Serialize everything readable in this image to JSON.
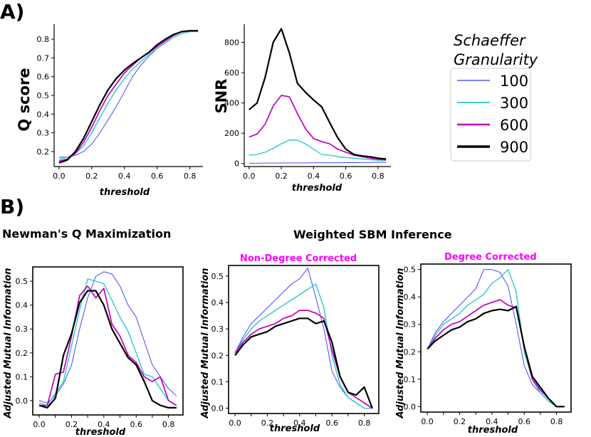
{
  "panel_labels": {
    "a": "A)",
    "b": "B)"
  },
  "headings": {
    "newman": "Newman's Q Maximization",
    "sbm": "Weighted SBM Inference",
    "non_degree": "Non-Degree Corrected",
    "degree": "Degree Corrected"
  },
  "colors": {
    "accent_magenta": "#ff00ff",
    "series": {
      "100": "#3333ff",
      "300": "#22c4c4",
      "600": "#c000c0",
      "900": "#000000"
    }
  },
  "legend": {
    "title_line1": "Schaeffer",
    "title_line2": "Granularity",
    "entries": [
      {
        "label": "100",
        "key": "100"
      },
      {
        "label": "300",
        "key": "300"
      },
      {
        "label": "600",
        "key": "600"
      },
      {
        "label": "900",
        "key": "900"
      }
    ]
  },
  "chart_data": [
    {
      "id": "q_score",
      "type": "line",
      "title": "",
      "xlabel": "threshold",
      "ylabel": "Q score",
      "xlim": [
        -0.03,
        0.88
      ],
      "ylim": [
        0.12,
        0.88
      ],
      "xticks": [
        0.0,
        0.2,
        0.4,
        0.6,
        0.8
      ],
      "xtick_labels": [
        "0.0",
        "0.2",
        "0.4",
        "0.6",
        "0.8"
      ],
      "yticks": [
        0.2,
        0.3,
        0.4,
        0.5,
        0.6,
        0.7,
        0.8
      ],
      "ytick_labels": [
        "0.2",
        "0.3",
        "0.4",
        "0.5",
        "0.6",
        "0.7",
        "0.8"
      ],
      "x": [
        0.0,
        0.05,
        0.1,
        0.15,
        0.2,
        0.25,
        0.3,
        0.35,
        0.4,
        0.45,
        0.5,
        0.55,
        0.6,
        0.65,
        0.7,
        0.75,
        0.8,
        0.85
      ],
      "series": [
        {
          "name": "100",
          "values": [
            0.17,
            0.17,
            0.18,
            0.2,
            0.24,
            0.3,
            0.37,
            0.44,
            0.52,
            0.6,
            0.66,
            0.71,
            0.75,
            0.78,
            0.81,
            0.83,
            0.84,
            0.84
          ]
        },
        {
          "name": "300",
          "values": [
            0.16,
            0.17,
            0.19,
            0.23,
            0.3,
            0.38,
            0.46,
            0.53,
            0.59,
            0.64,
            0.68,
            0.72,
            0.75,
            0.78,
            0.81,
            0.83,
            0.84,
            0.84
          ]
        },
        {
          "name": "600",
          "values": [
            0.15,
            0.16,
            0.19,
            0.25,
            0.33,
            0.42,
            0.5,
            0.56,
            0.62,
            0.66,
            0.7,
            0.73,
            0.76,
            0.79,
            0.82,
            0.84,
            0.845,
            0.845
          ]
        },
        {
          "name": "900",
          "values": [
            0.14,
            0.155,
            0.2,
            0.27,
            0.36,
            0.45,
            0.53,
            0.59,
            0.635,
            0.67,
            0.7,
            0.73,
            0.77,
            0.8,
            0.825,
            0.84,
            0.845,
            0.845
          ]
        }
      ]
    },
    {
      "id": "snr",
      "type": "line",
      "title": "",
      "xlabel": "threshold",
      "ylabel": "SNR",
      "xlim": [
        -0.03,
        0.88
      ],
      "ylim": [
        -20,
        920
      ],
      "xticks": [
        0.0,
        0.2,
        0.4,
        0.6,
        0.8
      ],
      "xtick_labels": [
        "0.0",
        "0.2",
        "0.4",
        "0.6",
        "0.8"
      ],
      "yticks": [
        0,
        200,
        400,
        600,
        800
      ],
      "ytick_labels": [
        "0",
        "200",
        "400",
        "600",
        "800"
      ],
      "x": [
        0.0,
        0.05,
        0.1,
        0.15,
        0.2,
        0.25,
        0.3,
        0.35,
        0.4,
        0.45,
        0.5,
        0.55,
        0.6,
        0.65,
        0.7,
        0.75,
        0.8,
        0.85
      ],
      "series": [
        {
          "name": "100",
          "values": [
            2,
            2,
            3,
            3,
            3,
            4,
            4,
            4,
            5,
            5,
            5,
            5,
            6,
            6,
            7,
            7,
            8,
            8
          ]
        },
        {
          "name": "300",
          "values": [
            55,
            60,
            75,
            100,
            130,
            155,
            155,
            130,
            95,
            60,
            55,
            45,
            40,
            35,
            30,
            25,
            22,
            20
          ]
        },
        {
          "name": "600",
          "values": [
            175,
            195,
            260,
            380,
            450,
            440,
            330,
            230,
            165,
            145,
            130,
            95,
            75,
            55,
            45,
            35,
            28,
            25
          ]
        },
        {
          "name": "900",
          "values": [
            355,
            400,
            570,
            800,
            890,
            730,
            530,
            470,
            420,
            375,
            270,
            170,
            95,
            60,
            50,
            45,
            35,
            30
          ]
        }
      ]
    },
    {
      "id": "newman_ami",
      "type": "line",
      "title": "Newman's Q Maximization",
      "xlabel": "threshold",
      "ylabel": "Adjusted Mutual Information",
      "xlim": [
        -0.04,
        0.89
      ],
      "ylim": [
        -0.06,
        0.56
      ],
      "xticks": [
        0.0,
        0.1,
        0.2,
        0.3,
        0.4,
        0.5,
        0.6,
        0.7,
        0.8
      ],
      "xtick_labels": [
        "0.0",
        "0.2",
        "0.4",
        "0.6",
        "0.8"
      ],
      "xtick_label_positions": [
        0.0,
        0.2,
        0.4,
        0.6,
        0.8
      ],
      "yticks": [
        0.0,
        0.1,
        0.2,
        0.3,
        0.4,
        0.5
      ],
      "ytick_labels": [
        "0.0",
        "0.1",
        "0.2",
        "0.3",
        "0.4",
        "0.5"
      ],
      "x": [
        0.0,
        0.05,
        0.1,
        0.15,
        0.2,
        0.25,
        0.3,
        0.35,
        0.4,
        0.45,
        0.5,
        0.55,
        0.6,
        0.65,
        0.7,
        0.75,
        0.8,
        0.85
      ],
      "series": [
        {
          "name": "100",
          "values": [
            0.0,
            -0.01,
            0.02,
            0.07,
            0.15,
            0.3,
            0.43,
            0.52,
            0.54,
            0.53,
            0.48,
            0.4,
            0.35,
            0.25,
            0.15,
            0.1,
            0.05,
            0.02
          ]
        },
        {
          "name": "300",
          "values": [
            -0.01,
            -0.02,
            0.03,
            0.08,
            0.23,
            0.38,
            0.51,
            0.5,
            0.49,
            0.42,
            0.35,
            0.29,
            0.2,
            0.11,
            0.1,
            0.05,
            0.0,
            -0.02
          ]
        },
        {
          "name": "600",
          "values": [
            -0.02,
            -0.02,
            0.11,
            0.12,
            0.27,
            0.44,
            0.48,
            0.43,
            0.47,
            0.32,
            0.27,
            0.19,
            0.16,
            0.1,
            0.08,
            0.1,
            0.0,
            -0.02
          ]
        },
        {
          "name": "900",
          "values": [
            -0.02,
            -0.03,
            0.01,
            0.19,
            0.28,
            0.41,
            0.46,
            0.46,
            0.4,
            0.3,
            0.24,
            0.18,
            0.15,
            0.08,
            0.0,
            -0.02,
            -0.03,
            -0.03
          ]
        }
      ]
    },
    {
      "id": "sbm_non_degree",
      "type": "line",
      "title": "Non-Degree Corrected",
      "xlabel": "threshold",
      "ylabel": "Adjusted Mutual Information",
      "xlim": [
        -0.04,
        0.89
      ],
      "ylim": [
        -0.02,
        0.54
      ],
      "xticks": [
        0.0,
        0.1,
        0.2,
        0.3,
        0.4,
        0.5,
        0.6,
        0.7,
        0.8
      ],
      "xtick_labels": [
        "0.0",
        "0.2",
        "0.4",
        "0.6",
        "0.8"
      ],
      "xtick_label_positions": [
        0.0,
        0.2,
        0.4,
        0.6,
        0.8
      ],
      "yticks": [
        0.0,
        0.1,
        0.2,
        0.3,
        0.4,
        0.5
      ],
      "ytick_labels": [
        "0.0",
        "0.1",
        "0.2",
        "0.3",
        "0.4",
        "0.5"
      ],
      "x": [
        0.0,
        0.05,
        0.1,
        0.15,
        0.2,
        0.25,
        0.3,
        0.35,
        0.4,
        0.45,
        0.5,
        0.55,
        0.6,
        0.65,
        0.7,
        0.75,
        0.8,
        0.85
      ],
      "series": [
        {
          "name": "100",
          "values": [
            0.21,
            0.27,
            0.32,
            0.35,
            0.38,
            0.41,
            0.44,
            0.47,
            0.49,
            0.53,
            0.42,
            0.3,
            0.14,
            0.08,
            0.04,
            0.02,
            0.0,
            0.0
          ]
        },
        {
          "name": "300",
          "values": [
            0.21,
            0.26,
            0.3,
            0.33,
            0.35,
            0.37,
            0.39,
            0.41,
            0.43,
            0.45,
            0.47,
            0.38,
            0.2,
            0.09,
            0.04,
            0.02,
            0.0,
            0.0
          ]
        },
        {
          "name": "600",
          "values": [
            0.21,
            0.25,
            0.28,
            0.3,
            0.31,
            0.32,
            0.34,
            0.35,
            0.37,
            0.37,
            0.36,
            0.34,
            0.22,
            0.12,
            0.06,
            0.04,
            0.02,
            0.0
          ]
        },
        {
          "name": "900",
          "values": [
            0.2,
            0.24,
            0.27,
            0.28,
            0.29,
            0.31,
            0.32,
            0.33,
            0.34,
            0.34,
            0.32,
            0.33,
            0.25,
            0.12,
            0.06,
            0.05,
            0.08,
            0.0
          ]
        }
      ]
    },
    {
      "id": "sbm_degree",
      "type": "line",
      "title": "Degree Corrected",
      "xlabel": "threshold",
      "ylabel": "Adjusted Mutual Information",
      "xlim": [
        -0.04,
        0.89
      ],
      "ylim": [
        -0.02,
        0.52
      ],
      "xticks": [
        0.0,
        0.1,
        0.2,
        0.3,
        0.4,
        0.5,
        0.6,
        0.7,
        0.8
      ],
      "xtick_labels": [
        "0.0",
        "0.2",
        "0.4",
        "0.6",
        "0.8"
      ],
      "xtick_label_positions": [
        0.0,
        0.2,
        0.4,
        0.6,
        0.8
      ],
      "yticks": [
        0.0,
        0.1,
        0.2,
        0.3,
        0.4,
        0.5
      ],
      "ytick_labels": [
        "0.0",
        "0.1",
        "0.2",
        "0.3",
        "0.4",
        "0.5"
      ],
      "x": [
        0.0,
        0.05,
        0.1,
        0.15,
        0.2,
        0.25,
        0.3,
        0.35,
        0.4,
        0.45,
        0.5,
        0.55,
        0.6,
        0.65,
        0.7,
        0.75,
        0.8,
        0.85
      ],
      "series": [
        {
          "name": "100",
          "values": [
            0.21,
            0.27,
            0.31,
            0.34,
            0.37,
            0.4,
            0.43,
            0.5,
            0.5,
            0.49,
            0.44,
            0.3,
            0.15,
            0.08,
            0.05,
            0.02,
            0.0,
            0.0
          ]
        },
        {
          "name": "300",
          "values": [
            0.21,
            0.26,
            0.3,
            0.32,
            0.34,
            0.37,
            0.39,
            0.41,
            0.45,
            0.47,
            0.5,
            0.42,
            0.2,
            0.1,
            0.05,
            0.02,
            0.0,
            0.0
          ]
        },
        {
          "name": "600",
          "values": [
            0.21,
            0.25,
            0.28,
            0.3,
            0.31,
            0.33,
            0.35,
            0.37,
            0.38,
            0.39,
            0.37,
            0.36,
            0.22,
            0.1,
            0.06,
            0.03,
            0.0,
            0.0
          ]
        },
        {
          "name": "900",
          "values": [
            0.21,
            0.24,
            0.26,
            0.28,
            0.29,
            0.31,
            0.32,
            0.34,
            0.35,
            0.355,
            0.35,
            0.365,
            0.22,
            0.11,
            0.07,
            0.03,
            0.0,
            0.0
          ]
        }
      ]
    }
  ]
}
